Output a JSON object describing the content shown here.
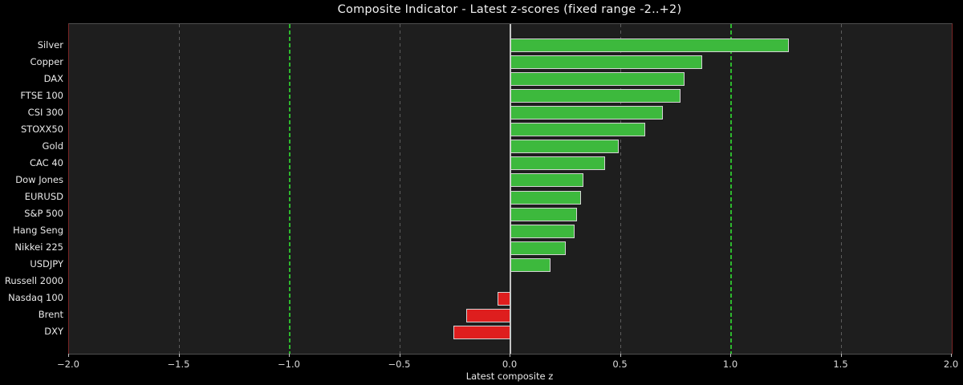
{
  "chart_data": {
    "type": "bar",
    "orientation": "horizontal",
    "title": "Composite Indicator - Latest z-scores (fixed range -2..+2)",
    "xlabel": "Latest composite z",
    "categories": [
      "Silver",
      "Copper",
      "DAX",
      "FTSE 100",
      "CSI 300",
      "STOXX50",
      "Gold",
      "CAC 40",
      "Dow Jones",
      "EURUSD",
      "S&P 500",
      "Hang Seng",
      "Nikkei 225",
      "USDJPY",
      "Russell 2000",
      "Nasdaq 100",
      "Brent",
      "DXY"
    ],
    "values": [
      1.26,
      0.87,
      0.79,
      0.77,
      0.69,
      0.61,
      0.49,
      0.43,
      0.33,
      0.32,
      0.3,
      0.29,
      0.25,
      0.18,
      0.0,
      -0.06,
      -0.2,
      -0.26
    ],
    "xlim": [
      -2.0,
      2.0
    ],
    "xticks": [
      -2.0,
      -1.5,
      -1.0,
      -0.5,
      0.0,
      0.5,
      1.0,
      1.5,
      2.0
    ],
    "xtick_labels": [
      "−2.0",
      "−1.5",
      "−1.0",
      "−0.5",
      "0.0",
      "0.5",
      "1.0",
      "1.5",
      "2.0"
    ],
    "gray_gridlines_at": [
      -1.5,
      -0.5,
      0.5,
      1.5
    ],
    "green_reference_lines_at": [
      -1.0,
      1.0
    ],
    "zero_line_at": 0.0,
    "grid": "vertical dashed",
    "legend": null,
    "colors": {
      "positive_bar": "#3db93d",
      "negative_bar": "#de1e1e",
      "bar_edge": "#d4d4d4",
      "figure_background": "#000000",
      "axes_background": "#1e1e1e",
      "gray_grid": "#5c5c5c",
      "green_reference": "#2eb82e",
      "zero_line": "#c4c4c4",
      "left_right_spine": "#7a2525",
      "top_bottom_spine": "#4f4f4f",
      "text": "#e9e9e9"
    }
  }
}
